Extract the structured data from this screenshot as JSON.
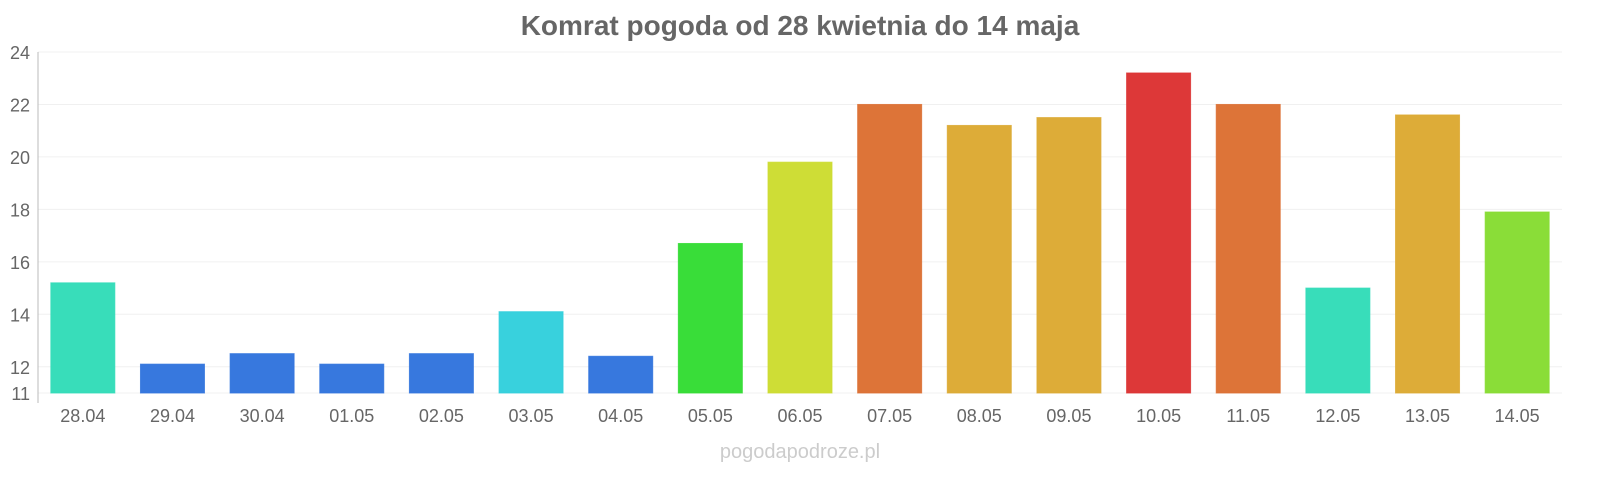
{
  "chart_data": {
    "type": "bar",
    "title": "Komrat pogoda od 28 kwietnia do 14 maja",
    "xlabel": "",
    "ylabel": "",
    "ylim": [
      11,
      24
    ],
    "yticks": [
      11,
      12,
      14,
      16,
      18,
      20,
      22,
      24
    ],
    "grid": true,
    "categories": [
      "28.04",
      "29.04",
      "30.04",
      "01.05",
      "02.05",
      "03.05",
      "04.05",
      "05.05",
      "06.05",
      "07.05",
      "08.05",
      "09.05",
      "10.05",
      "11.05",
      "12.05",
      "13.05",
      "14.05"
    ],
    "values": [
      15.2,
      12.1,
      12.5,
      12.1,
      12.5,
      14.1,
      12.4,
      16.7,
      19.8,
      22.0,
      21.2,
      21.5,
      23.2,
      22.0,
      15.0,
      21.6,
      17.9
    ],
    "colors": [
      "#34dcb9",
      "#3375dd",
      "#3375dd",
      "#3375dd",
      "#3375dd",
      "#34d0dc",
      "#3375dd",
      "#35dc35",
      "#cddc32",
      "#dc7134",
      "#dcaa34",
      "#dcaa34",
      "#dc3434",
      "#dc7134",
      "#34dcb9",
      "#dcaa34",
      "#88dc34"
    ]
  },
  "footer": "pogodapodroze.pl"
}
